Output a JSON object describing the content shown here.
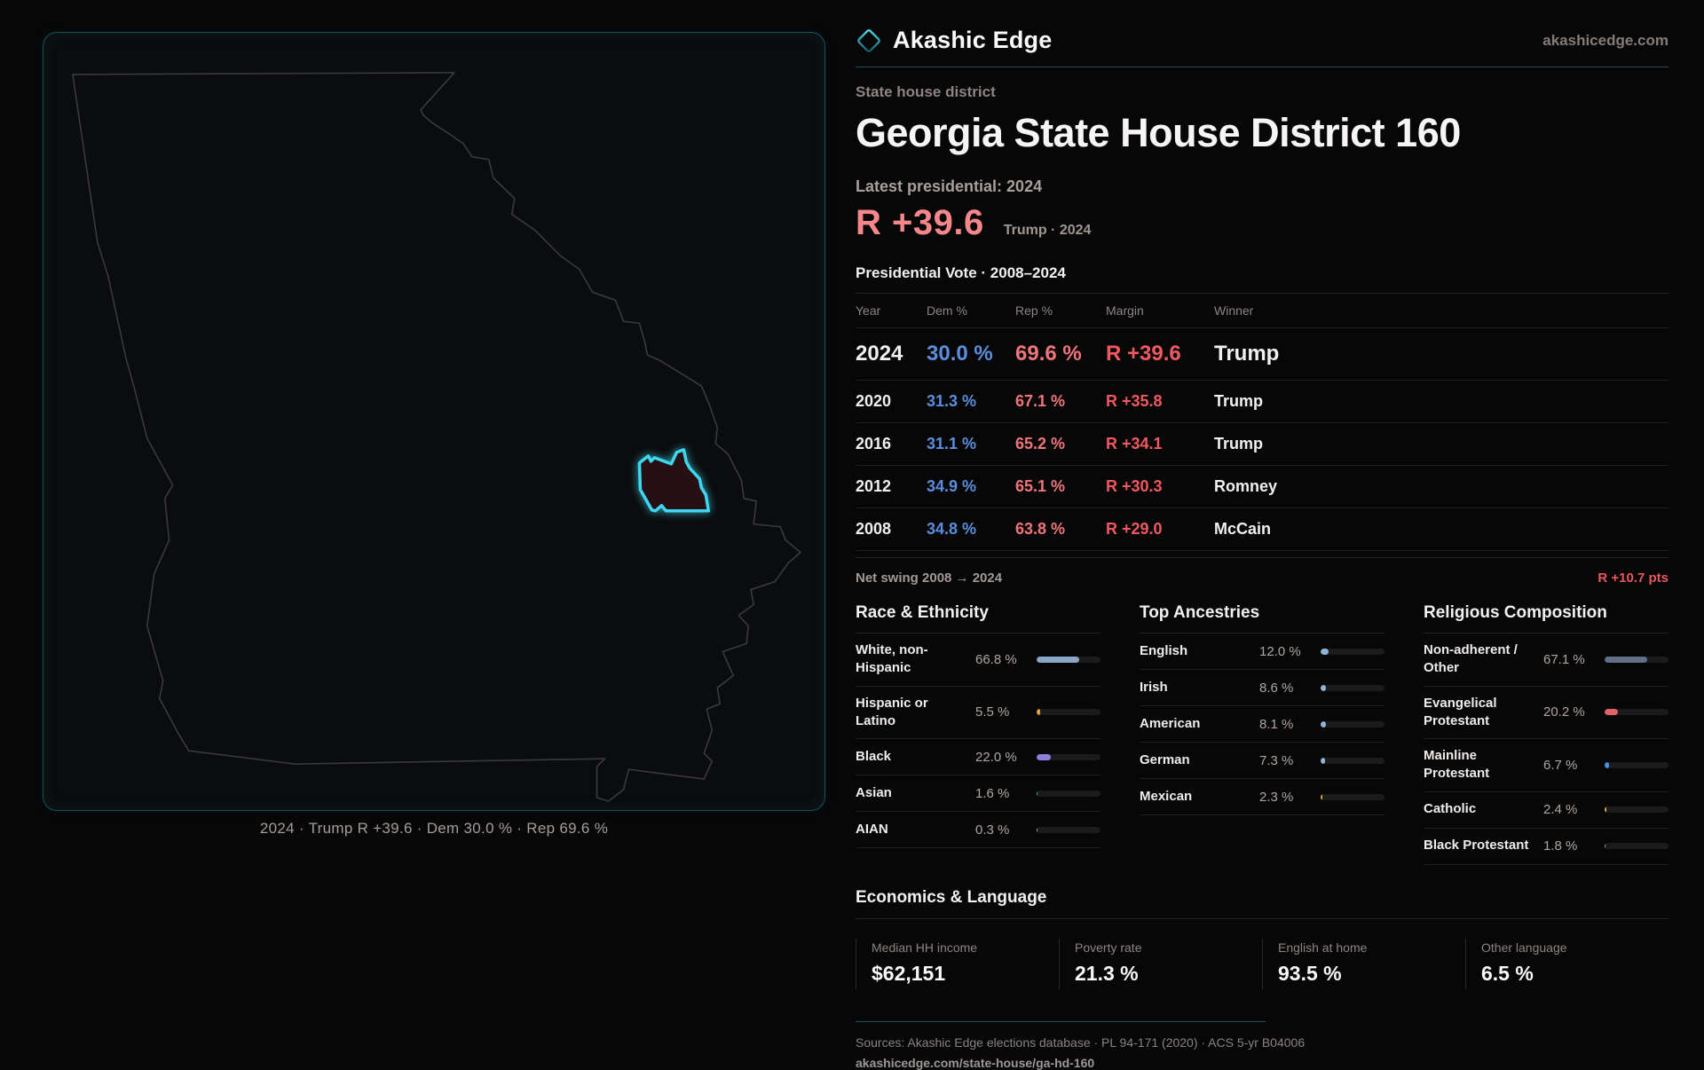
{
  "brand": {
    "name": "Akashic Edge",
    "site": "akashicedge.com",
    "accent_teal": "#3fd6f0"
  },
  "page": {
    "eyebrow": "State house district",
    "title": "Georgia State House District 160",
    "latest_label": "Latest presidential: 2024",
    "hero_margin": "R +39.6",
    "hero_sub": "Trump · 2024"
  },
  "colors": {
    "dem_blue": "#5b8edd",
    "rep_red": "#ee767b",
    "margin_red": "#f0595f",
    "hero_pink": "#f5868a",
    "district_stroke": "#3fd6f0"
  },
  "vote_table": {
    "title": "Presidential Vote · 2008–2024",
    "headers": {
      "year": "Year",
      "dem": "Dem %",
      "rep": "Rep %",
      "margin": "Margin",
      "winner": "Winner"
    },
    "rows": [
      {
        "year": "2024",
        "dem": "30.0 %",
        "rep": "69.6 %",
        "margin": "R +39.6",
        "winner": "Trump"
      },
      {
        "year": "2020",
        "dem": "31.3 %",
        "rep": "67.1 %",
        "margin": "R +35.8",
        "winner": "Trump"
      },
      {
        "year": "2016",
        "dem": "31.1 %",
        "rep": "65.2 %",
        "margin": "R +34.1",
        "winner": "Trump"
      },
      {
        "year": "2012",
        "dem": "34.9 %",
        "rep": "65.1 %",
        "margin": "R +30.3",
        "winner": "Romney"
      },
      {
        "year": "2008",
        "dem": "34.8 %",
        "rep": "63.8 %",
        "margin": "R +29.0",
        "winner": "McCain"
      }
    ],
    "net_swing_label": "Net swing 2008 → 2024",
    "net_swing_value": "R +10.7 pts"
  },
  "demographics": {
    "race": {
      "title": "Race & Ethnicity",
      "rows": [
        {
          "label": "White, non-Hispanic",
          "value": "66.8 %",
          "pct": 66.8,
          "color": "#8ba6c4"
        },
        {
          "label": "Hispanic or Latino",
          "value": "5.5 %",
          "pct": 5.5,
          "color": "#e2a33c"
        },
        {
          "label": "Black",
          "value": "22.0 %",
          "pct": 22.0,
          "color": "#8d7fe0"
        },
        {
          "label": "Asian",
          "value": "1.6 %",
          "pct": 1.6,
          "color": "#2fc9a0"
        },
        {
          "label": "AIAN",
          "value": "0.3 %",
          "pct": 0.3,
          "color": "#8ba6c4"
        }
      ]
    },
    "ancestries": {
      "title": "Top Ancestries",
      "rows": [
        {
          "label": "English",
          "value": "12.0 %",
          "pct": 12.0,
          "color": "#8fb3d9"
        },
        {
          "label": "Irish",
          "value": "8.6 %",
          "pct": 8.6,
          "color": "#8fb3d9"
        },
        {
          "label": "American",
          "value": "8.1 %",
          "pct": 8.1,
          "color": "#8fb3d9"
        },
        {
          "label": "German",
          "value": "7.3 %",
          "pct": 7.3,
          "color": "#8fb3d9"
        },
        {
          "label": "Mexican",
          "value": "2.3 %",
          "pct": 2.3,
          "color": "#e2a33c"
        }
      ]
    },
    "religion": {
      "title": "Religious Composition",
      "rows": [
        {
          "label": "Non-adherent / Other",
          "value": "67.1 %",
          "pct": 67.1,
          "color": "#5f7087"
        },
        {
          "label": "Evangelical Protestant",
          "value": "20.2 %",
          "pct": 20.2,
          "color": "#e0636a"
        },
        {
          "label": "Mainline Protestant",
          "value": "6.7 %",
          "pct": 6.7,
          "color": "#4a8fe0"
        },
        {
          "label": "Catholic",
          "value": "2.4 %",
          "pct": 2.4,
          "color": "#e0b13c"
        },
        {
          "label": "Black Protestant",
          "value": "1.8 %",
          "pct": 1.8,
          "color": "#9b8fe0"
        }
      ]
    }
  },
  "economics": {
    "title": "Economics & Language",
    "stats": [
      {
        "label": "Median HH income",
        "value": "$62,151"
      },
      {
        "label": "Poverty rate",
        "value": "21.3 %"
      },
      {
        "label": "English at home",
        "value": "93.5 %"
      },
      {
        "label": "Other language",
        "value": "6.5 %"
      }
    ]
  },
  "footer": {
    "sources": "Sources: Akashic Edge elections database · PL 94-171 (2020) · ACS 5-yr B04006",
    "url": "akashicedge.com/state-house/ga-hd-160"
  },
  "map": {
    "caption": "2024 · Trump R +39.6 · Dem 30.0 % · Rep 69.6 %"
  }
}
